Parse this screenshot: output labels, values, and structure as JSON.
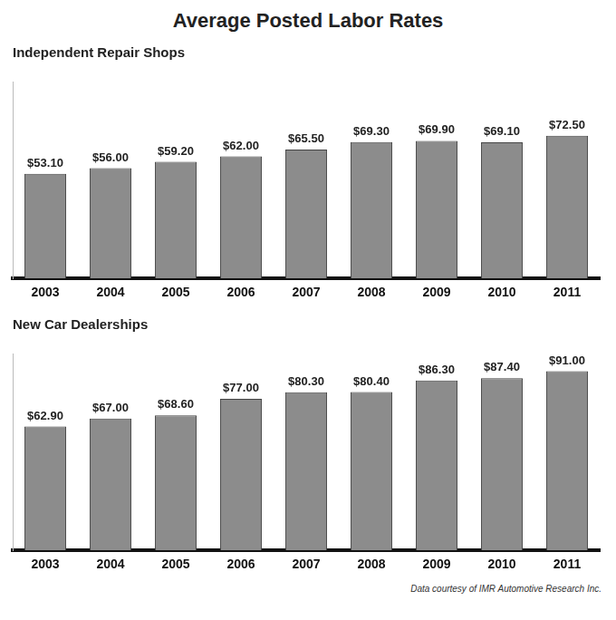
{
  "title": "Average Posted Labor Rates",
  "source": "Data courtesy of IMR Automotive Research Inc.",
  "chart_data": [
    {
      "type": "bar",
      "title": "Independent Repair Shops",
      "categories": [
        "2003",
        "2004",
        "2005",
        "2006",
        "2007",
        "2008",
        "2009",
        "2010",
        "2011"
      ],
      "values": [
        53.1,
        56.0,
        59.2,
        62.0,
        65.5,
        69.3,
        69.9,
        69.1,
        72.5
      ],
      "value_labels": [
        "$53.10",
        "$56.00",
        "$59.20",
        "$62.00",
        "$65.50",
        "$69.30",
        "$69.90",
        "$69.10",
        "$72.50"
      ],
      "color": "#8c8c8c",
      "ylim": [
        0,
        100
      ],
      "data_labels": true,
      "tick_labels": "x",
      "grid": false
    },
    {
      "type": "bar",
      "title": "New Car Dealerships",
      "categories": [
        "2003",
        "2004",
        "2005",
        "2006",
        "2007",
        "2008",
        "2009",
        "2010",
        "2011"
      ],
      "values": [
        62.9,
        67.0,
        68.6,
        77.0,
        80.3,
        80.4,
        86.3,
        87.4,
        91.0
      ],
      "value_labels": [
        "$62.90",
        "$67.00",
        "$68.60",
        "$77.00",
        "$80.30",
        "$80.40",
        "$86.30",
        "$87.40",
        "$91.00"
      ],
      "color": "#8c8c8c",
      "ylim": [
        0,
        100
      ],
      "data_labels": true,
      "tick_labels": "x",
      "grid": false
    }
  ]
}
